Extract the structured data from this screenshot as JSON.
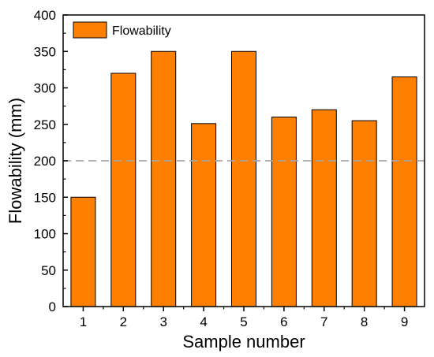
{
  "chart_data": {
    "type": "bar",
    "categories": [
      "1",
      "2",
      "3",
      "4",
      "5",
      "6",
      "7",
      "8",
      "9"
    ],
    "series": [
      {
        "name": "Flowability",
        "values": [
          150,
          320,
          350,
          251,
          350,
          260,
          270,
          255,
          315
        ]
      }
    ],
    "xlabel": "Sample number",
    "ylabel": "Flowability (mm)",
    "ylim": [
      0,
      400
    ],
    "yticks": [
      "0",
      "50",
      "100",
      "150",
      "200",
      "250",
      "300",
      "350",
      "400"
    ],
    "reference_line": {
      "y": 200,
      "style": "dashed"
    },
    "legend_position": "top-left",
    "grid": false,
    "bar_color": "#ff7f00",
    "bar_edge_color": "#000000",
    "reference_line_color": "#a6a6a6"
  }
}
